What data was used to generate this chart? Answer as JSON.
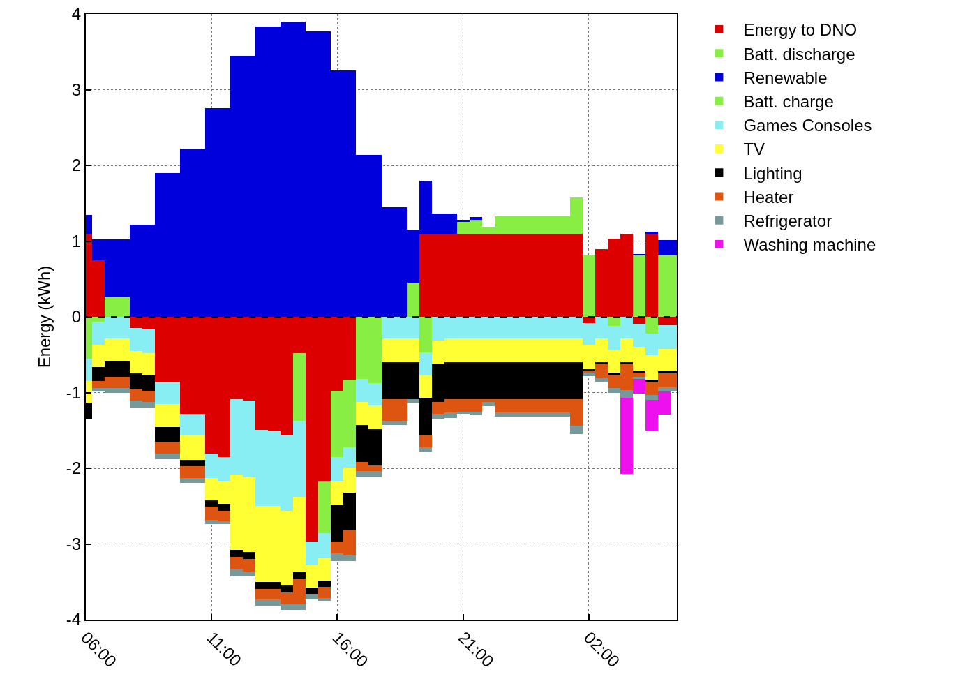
{
  "chart_data": {
    "type": "bar",
    "stacked": true,
    "ylabel": "Energy (kWh)",
    "categories": [
      "06:00",
      null,
      null,
      null,
      null,
      null,
      null,
      null,
      null,
      null,
      "11:00",
      null,
      null,
      null,
      null,
      null,
      null,
      null,
      null,
      null,
      "16:00",
      null,
      null,
      null,
      null,
      null,
      null,
      null,
      null,
      null,
      "21:00",
      null,
      null,
      null,
      null,
      null,
      null,
      null,
      null,
      null,
      "02:00",
      null,
      null,
      null,
      null,
      null,
      null,
      null
    ],
    "ylim": [
      -4,
      4
    ],
    "yticks": [
      -4,
      -3,
      -2,
      -1,
      0,
      1,
      2,
      3,
      4
    ],
    "grid": true,
    "legend": "top right",
    "ref_lines": [
      {
        "axis": "y",
        "value": 0,
        "label": null,
        "color": "#000000",
        "line_style": "dashed"
      }
    ],
    "series": [
      {
        "name": "Energy to DNO",
        "color": "#dd0000",
        "values": [
          1.1,
          0.75,
          null,
          null,
          -0.15,
          -0.17,
          -0.86,
          -0.86,
          -1.28,
          -1.28,
          -1.81,
          -1.85,
          -1.09,
          -1.11,
          -1.49,
          -1.5,
          -1.57,
          -0.48,
          -2.97,
          -2.17,
          -0.98,
          -0.83,
          null,
          null,
          null,
          null,
          null,
          1.1,
          1.1,
          1.1,
          1.1,
          1.1,
          1.1,
          1.1,
          1.1,
          1.1,
          1.1,
          1.1,
          1.1,
          1.1,
          -0.08,
          0.89,
          1.03,
          1.1,
          -0.09,
          1.1,
          -0.11,
          -0.11
        ]
      },
      {
        "name": "Batt. discharge",
        "color": "#88ee44",
        "values": [
          null,
          null,
          0.27,
          0.27,
          null,
          null,
          null,
          null,
          null,
          null,
          null,
          null,
          null,
          null,
          null,
          null,
          null,
          null,
          null,
          null,
          null,
          null,
          null,
          null,
          null,
          null,
          0.45,
          null,
          null,
          null,
          0.15,
          0.18,
          0.09,
          0.23,
          0.23,
          0.23,
          0.23,
          0.23,
          0.23,
          0.48,
          0.82,
          null,
          null,
          null,
          0.81,
          null,
          0.81,
          0.81
        ]
      },
      {
        "name": "Renewable",
        "color": "#0000dd",
        "values": [
          0.25,
          0.27,
          0.75,
          0.75,
          1.22,
          1.22,
          1.9,
          1.9,
          2.22,
          2.22,
          2.76,
          2.76,
          3.45,
          3.45,
          3.83,
          3.83,
          3.9,
          3.9,
          3.77,
          3.77,
          3.25,
          3.25,
          2.14,
          2.14,
          1.45,
          1.45,
          0.7,
          0.7,
          0.26,
          0.26,
          0.03,
          0.04,
          null,
          null,
          null,
          null,
          null,
          null,
          null,
          null,
          null,
          null,
          null,
          null,
          0.02,
          0.02,
          0.2,
          0.2
        ]
      },
      {
        "name": "Batt. charge",
        "color": "#88ee44",
        "values": [
          -0.55,
          -0.06,
          null,
          null,
          null,
          null,
          null,
          null,
          null,
          null,
          null,
          null,
          null,
          null,
          null,
          null,
          null,
          -0.89,
          null,
          -0.69,
          -0.87,
          -0.89,
          -0.82,
          -0.88,
          null,
          null,
          null,
          -0.47,
          null,
          null,
          null,
          null,
          null,
          null,
          null,
          null,
          null,
          null,
          null,
          null,
          null,
          null,
          -0.12,
          null,
          null,
          -0.22,
          null,
          null
        ]
      },
      {
        "name": "Games Consoles",
        "color": "#88eef4",
        "values": [
          -0.3,
          -0.31,
          -0.29,
          -0.29,
          -0.3,
          -0.31,
          -0.29,
          -0.29,
          -0.29,
          -0.29,
          -0.32,
          -0.32,
          -0.99,
          -1.01,
          -1.01,
          -1.0,
          -0.99,
          -1.01,
          -0.31,
          -0.32,
          -0.32,
          -0.27,
          -0.3,
          -0.29,
          -0.29,
          -0.29,
          -0.29,
          -0.3,
          -0.31,
          -0.29,
          -0.29,
          -0.29,
          -0.29,
          -0.29,
          -0.29,
          -0.29,
          -0.29,
          -0.29,
          -0.29,
          -0.29,
          -0.29,
          -0.29,
          -0.31,
          -0.29,
          -0.31,
          -0.29,
          -0.31,
          -0.31
        ]
      },
      {
        "name": "TV",
        "color": "#ffff33",
        "values": [
          -0.28,
          -0.29,
          -0.3,
          -0.3,
          -0.3,
          -0.29,
          -0.31,
          -0.31,
          -0.32,
          -0.32,
          -0.29,
          -0.3,
          -1.0,
          -0.99,
          -1.0,
          -1.0,
          -0.99,
          -0.99,
          -0.3,
          -0.3,
          -0.31,
          -0.33,
          -0.31,
          -0.31,
          -0.31,
          -0.31,
          -0.31,
          -0.3,
          -0.32,
          -0.31,
          -0.31,
          -0.31,
          -0.31,
          -0.31,
          -0.31,
          -0.31,
          -0.31,
          -0.31,
          -0.31,
          -0.31,
          -0.32,
          -0.31,
          -0.31,
          -0.31,
          -0.31,
          -0.32,
          -0.3,
          -0.3
        ]
      },
      {
        "name": "Lighting",
        "color": "#000000",
        "values": [
          -0.22,
          -0.19,
          -0.2,
          -0.2,
          -0.2,
          -0.21,
          -0.19,
          -0.19,
          -0.08,
          -0.08,
          -0.09,
          -0.09,
          -0.09,
          -0.09,
          -0.09,
          -0.09,
          -0.09,
          -0.09,
          -0.08,
          -0.09,
          -0.49,
          -0.5,
          -0.49,
          -0.48,
          -0.49,
          -0.49,
          -0.49,
          -0.5,
          -0.49,
          -0.49,
          -0.49,
          -0.49,
          -0.49,
          -0.49,
          -0.49,
          -0.49,
          -0.49,
          -0.49,
          -0.49,
          -0.49,
          -0.03,
          -0.03,
          -0.03,
          -0.03,
          -0.03,
          -0.04,
          -0.03,
          -0.03
        ]
      },
      {
        "name": "Heater",
        "color": "#dd5511",
        "values": [
          null,
          -0.09,
          -0.15,
          -0.15,
          -0.16,
          -0.14,
          -0.16,
          -0.16,
          -0.16,
          -0.16,
          -0.17,
          -0.14,
          -0.16,
          -0.16,
          -0.14,
          -0.14,
          -0.16,
          -0.34,
          null,
          -0.14,
          -0.15,
          -0.33,
          -0.12,
          -0.08,
          -0.28,
          -0.28,
          null,
          -0.15,
          -0.16,
          -0.17,
          -0.16,
          -0.16,
          -0.03,
          -0.17,
          -0.17,
          -0.17,
          -0.17,
          -0.17,
          -0.17,
          -0.35,
          -0.02,
          -0.17,
          -0.17,
          -0.34,
          -0.05,
          -0.16,
          -0.18,
          -0.18
        ]
      },
      {
        "name": "Refrigerator",
        "color": "#779999",
        "values": [
          null,
          -0.05,
          -0.06,
          -0.06,
          -0.09,
          -0.08,
          -0.07,
          -0.07,
          -0.06,
          -0.06,
          -0.06,
          -0.04,
          -0.1,
          -0.07,
          -0.09,
          -0.09,
          -0.07,
          -0.07,
          -0.07,
          -0.04,
          -0.11,
          -0.08,
          -0.08,
          -0.08,
          -0.06,
          -0.06,
          -0.05,
          -0.06,
          -0.07,
          -0.08,
          -0.03,
          -0.05,
          -0.06,
          -0.06,
          -0.06,
          -0.06,
          -0.06,
          -0.06,
          -0.06,
          -0.11,
          -0.04,
          -0.06,
          -0.06,
          -0.1,
          -0.03,
          -0.07,
          -0.06,
          -0.06
        ]
      },
      {
        "name": "Washing machine",
        "color": "#ee11ee",
        "values": [
          null,
          null,
          null,
          null,
          null,
          null,
          null,
          null,
          null,
          null,
          null,
          null,
          null,
          null,
          null,
          null,
          null,
          null,
          null,
          null,
          null,
          null,
          null,
          null,
          null,
          null,
          null,
          null,
          null,
          null,
          null,
          null,
          null,
          null,
          null,
          null,
          null,
          null,
          null,
          null,
          null,
          null,
          null,
          -1.0,
          -0.19,
          -0.4,
          -0.3,
          null
        ]
      }
    ]
  }
}
